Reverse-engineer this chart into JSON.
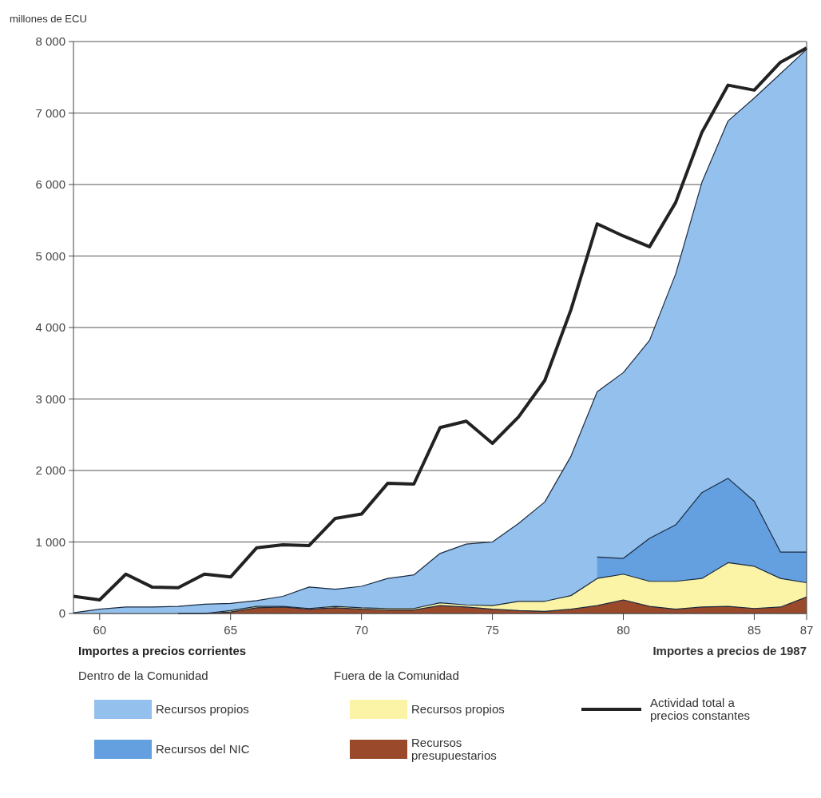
{
  "chart_data": {
    "type": "area",
    "stacked": true,
    "ylabel": "millones de ECU",
    "legend_title": "Importes a precios corrientes",
    "annotations": [
      "Importes a precios de 1987",
      "Dentro de la Comunidad",
      "Fuera de la Comunidad"
    ],
    "x": [
      1959,
      1960,
      1961,
      1962,
      1963,
      1964,
      1965,
      1966,
      1967,
      1968,
      1969,
      1970,
      1971,
      1972,
      1973,
      1974,
      1975,
      1976,
      1977,
      1978,
      1979,
      1980,
      1981,
      1982,
      1983,
      1984,
      1985,
      1986,
      1987
    ],
    "series": [
      {
        "name": "Recursos presupuestarios",
        "color": "#9a4a2a",
        "values": [
          null,
          null,
          null,
          null,
          0,
          0,
          20,
          80,
          90,
          60,
          80,
          60,
          50,
          50,
          110,
          90,
          60,
          40,
          30,
          60,
          110,
          190,
          100,
          60,
          90,
          100,
          70,
          90,
          230
        ]
      },
      {
        "name": "Recursos propios",
        "color": "#fbf3a6",
        "values": [
          null,
          null,
          null,
          null,
          0,
          0,
          20,
          20,
          10,
          10,
          20,
          20,
          20,
          20,
          40,
          30,
          50,
          130,
          140,
          190,
          380,
          360,
          350,
          390,
          400,
          610,
          590,
          400,
          200
        ]
      },
      {
        "name": "Recursos del NIC",
        "color": "#64a0e0",
        "values": [
          null,
          null,
          null,
          null,
          null,
          null,
          null,
          null,
          null,
          null,
          null,
          null,
          null,
          null,
          null,
          null,
          null,
          null,
          null,
          null,
          300,
          220,
          600,
          790,
          1200,
          1180,
          910,
          370,
          430
        ]
      },
      {
        "name": "Recursos propios",
        "color": "#93c0ec",
        "values": [
          10,
          60,
          90,
          90,
          100,
          130,
          100,
          80,
          140,
          300,
          240,
          300,
          420,
          470,
          690,
          850,
          890,
          1090,
          1390,
          1950,
          2310,
          2600,
          2770,
          3510,
          4340,
          5000,
          5640,
          6690,
          7030
        ]
      },
      {
        "name": "Actividad total a precios constantes",
        "type": "line",
        "color": "#222222",
        "values": [
          240,
          190,
          550,
          370,
          360,
          550,
          510,
          920,
          960,
          950,
          1330,
          1390,
          1820,
          1810,
          2600,
          2690,
          2380,
          2750,
          3260,
          4250,
          5450,
          5280,
          5130,
          5750,
          6730,
          7390,
          7320,
          7710,
          7910
        ]
      }
    ],
    "xlim": [
      1959,
      1987
    ],
    "xticks": [
      {
        "value": 1960,
        "label": "60"
      },
      {
        "value": 1965,
        "label": "65"
      },
      {
        "value": 1970,
        "label": "70"
      },
      {
        "value": 1975,
        "label": "75"
      },
      {
        "value": 1980,
        "label": "80"
      },
      {
        "value": 1985,
        "label": "85"
      },
      {
        "value": 1987,
        "label": "87"
      }
    ],
    "ylim": [
      0,
      8000
    ],
    "yticks": [
      0,
      {
        "value": 1000,
        "label": "1 000"
      },
      {
        "value": 2000,
        "label": "2 000"
      },
      {
        "value": 3000,
        "label": "3 000"
      },
      {
        "value": 4000,
        "label": "4 000"
      },
      {
        "value": 5000,
        "label": "5 000"
      },
      {
        "value": 6000,
        "label": "6 000"
      },
      {
        "value": 7000,
        "label": "7 000"
      },
      {
        "value": 8000,
        "label": "8 000"
      }
    ],
    "grid": "y",
    "legend": "bottom"
  }
}
